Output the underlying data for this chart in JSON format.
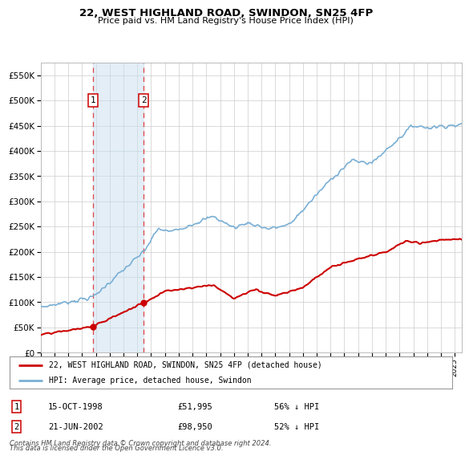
{
  "title": "22, WEST HIGHLAND ROAD, SWINDON, SN25 4FP",
  "subtitle": "Price paid vs. HM Land Registry's House Price Index (HPI)",
  "background_color": "#ffffff",
  "grid_color": "#cccccc",
  "hpi_color": "#7aafd4",
  "hpi_fill_color": "#c8dff0",
  "property_color": "#cc0000",
  "sale1_year": 1998.79,
  "sale1_price": 51995,
  "sale2_year": 2002.47,
  "sale2_price": 98950,
  "ylim_max": 575000,
  "ylim_min": 0,
  "xmin": 1995,
  "xmax": 2025.5,
  "legend_label1": "22, WEST HIGHLAND ROAD, SWINDON, SN25 4FP (detached house)",
  "legend_label2": "HPI: Average price, detached house, Swindon",
  "footer1": "Contains HM Land Registry data © Crown copyright and database right 2024.",
  "footer2": "This data is licensed under the Open Government Licence v3.0.",
  "table_row1": [
    "1",
    "15-OCT-1998",
    "£51,995",
    "56% ↓ HPI"
  ],
  "table_row2": [
    "2",
    "21-JUN-2002",
    "£98,950",
    "52% ↓ HPI"
  ]
}
